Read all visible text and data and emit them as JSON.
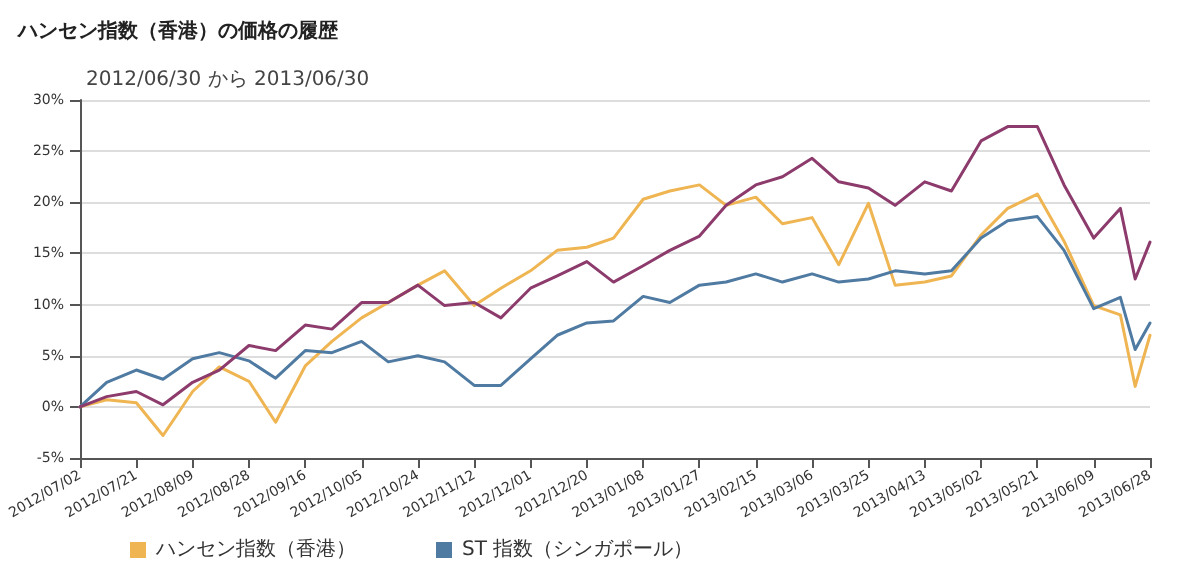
{
  "chart_data": {
    "type": "line",
    "title": "ハンセン指数（香港）の価格の履歴",
    "subtitle": "2012/06/30 から 2013/06/30",
    "x": [
      "2012-07-02",
      "2012-07-11",
      "2012-07-21",
      "2012-07-30",
      "2012-08-09",
      "2012-08-18",
      "2012-08-28",
      "2012-09-06",
      "2012-09-16",
      "2012-09-25",
      "2012-10-05",
      "2012-10-14",
      "2012-10-24",
      "2012-11-02",
      "2012-11-12",
      "2012-11-21",
      "2012-12-01",
      "2012-12-10",
      "2012-12-20",
      "2012-12-29",
      "2013-01-08",
      "2013-01-17",
      "2013-01-27",
      "2013-02-05",
      "2013-02-15",
      "2013-02-24",
      "2013-03-06",
      "2013-03-15",
      "2013-03-25",
      "2013-04-03",
      "2013-04-13",
      "2013-04-22",
      "2013-05-02",
      "2013-05-11",
      "2013-05-21",
      "2013-05-30",
      "2013-06-09",
      "2013-06-18",
      "2013-06-23",
      "2013-06-28"
    ],
    "series": [
      {
        "name": "ハンセン指数（香港）",
        "color": "#efb552",
        "values": [
          0,
          0.7,
          0.4,
          -2.8,
          1.5,
          3.9,
          2.5,
          -1.5,
          4,
          6.4,
          8.7,
          10.2,
          11.9,
          13.3,
          9.9,
          11.6,
          13.3,
          15.3,
          15.6,
          16.5,
          20.3,
          21.1,
          21.7,
          19.7,
          20.5,
          17.9,
          18.5,
          13.9,
          19.9,
          11.9,
          12.2,
          12.8,
          16.8,
          19.4,
          20.8,
          16.2,
          9.9,
          9.0,
          2.0,
          7.0
        ]
      },
      {
        "name": "ST 指数（シンガポール）",
        "color": "#4f7aa2",
        "values": [
          0,
          2.4,
          3.6,
          2.7,
          4.7,
          5.3,
          4.5,
          2.8,
          5.5,
          5.3,
          6.4,
          4.4,
          5.0,
          4.4,
          2.1,
          2.1,
          4.7,
          7.0,
          8.2,
          8.4,
          10.8,
          10.2,
          11.9,
          12.2,
          13.0,
          12.2,
          13.0,
          12.2,
          12.5,
          13.3,
          13.0,
          13.3,
          16.5,
          18.2,
          18.6,
          15.3,
          9.6,
          10.7,
          5.6,
          8.2
        ]
      },
      {
        "color": "#8c3b6c",
        "values": [
          0,
          1.0,
          1.5,
          0.2,
          2.4,
          3.6,
          6.0,
          5.5,
          8,
          7.6,
          10.2,
          10.2,
          11.9,
          9.9,
          10.2,
          8.7,
          11.6,
          12.8,
          14.2,
          12.2,
          13.8,
          15.3,
          16.7,
          19.7,
          21.7,
          22.5,
          24.3,
          22.0,
          21.4,
          19.7,
          22.0,
          21.1,
          26.0,
          27.4,
          27.4,
          21.7,
          16.5,
          19.4,
          12.5,
          16.1
        ]
      }
    ],
    "xlim": [
      "2012-07-02",
      "2013-06-28"
    ],
    "xticks": [
      {
        "value": "2012-07-02",
        "label": "2012/07/02"
      },
      {
        "value": "2012-07-21",
        "label": "2012/07/21"
      },
      {
        "value": "2012-08-09",
        "label": "2012/08/09"
      },
      {
        "value": "2012-08-28",
        "label": "2012/08/28"
      },
      {
        "value": "2012-09-16",
        "label": "2012/09/16"
      },
      {
        "value": "2012-10-05",
        "label": "2012/10/05"
      },
      {
        "value": "2012-10-24",
        "label": "2012/10/24"
      },
      {
        "value": "2012-11-12",
        "label": "2012/11/12"
      },
      {
        "value": "2012-12-01",
        "label": "2012/12/01"
      },
      {
        "value": "2012-12-20",
        "label": "2012/12/20"
      },
      {
        "value": "2013-01-08",
        "label": "2013/01/08"
      },
      {
        "value": "2013-01-27",
        "label": "2013/01/27"
      },
      {
        "value": "2013-02-15",
        "label": "2013/02/15"
      },
      {
        "value": "2013-03-06",
        "label": "2013/03/06"
      },
      {
        "value": "2013-03-25",
        "label": "2013/03/25"
      },
      {
        "value": "2013-04-13",
        "label": "2013/04/13"
      },
      {
        "value": "2013-05-02",
        "label": "2013/05/02"
      },
      {
        "value": "2013-05-21",
        "label": "2013/05/21"
      },
      {
        "value": "2013-06-09",
        "label": "2013/06/09"
      },
      {
        "value": "2013-06-28",
        "label": "2013/06/28"
      }
    ],
    "ylim": [
      -5,
      30
    ],
    "yticks": [
      {
        "value": -5,
        "label": "-5%"
      },
      {
        "value": 0,
        "label": "0%"
      },
      {
        "value": 5,
        "label": "5%"
      },
      {
        "value": 10,
        "label": "10%"
      },
      {
        "value": 15,
        "label": "15%"
      },
      {
        "value": 20,
        "label": "20%"
      },
      {
        "value": 25,
        "label": "25%"
      },
      {
        "value": 30,
        "label": "30%"
      }
    ],
    "grid": "y",
    "legend": "bottom left",
    "marker": "none",
    "line_style": "solid"
  }
}
